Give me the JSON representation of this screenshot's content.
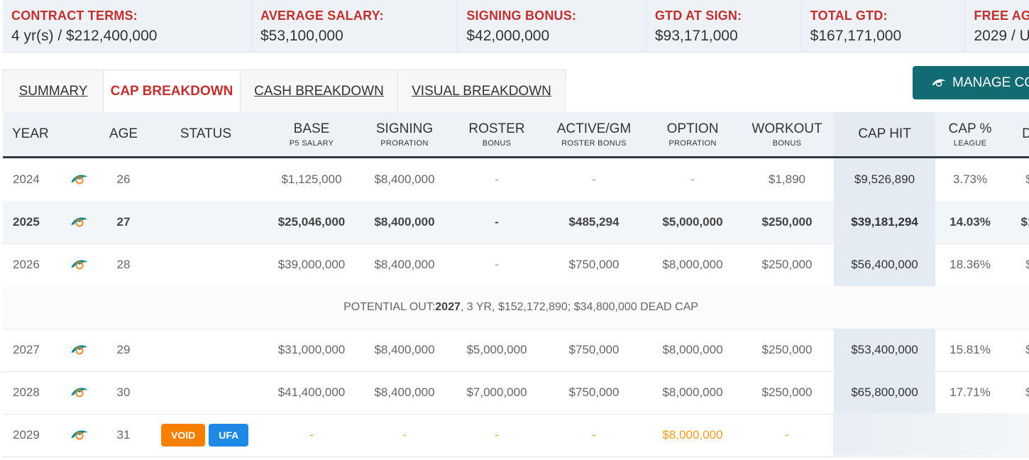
{
  "summary": [
    {
      "label": "CONTRACT TERMS:",
      "value": "4 yr(s) / $212,400,000"
    },
    {
      "label": "AVERAGE SALARY:",
      "value": "$53,100,000"
    },
    {
      "label": "SIGNING BONUS:",
      "value": "$42,000,000"
    },
    {
      "label": "GTD AT SIGN:",
      "value": "$93,171,000"
    },
    {
      "label": "TOTAL GTD:",
      "value": "$167,171,000"
    },
    {
      "label": "FREE AG",
      "value": "2029 / U"
    }
  ],
  "tabs": [
    "SUMMARY",
    "CAP BREAKDOWN",
    "CASH BREAKDOWN",
    "VISUAL BREAKDOWN"
  ],
  "manage_button": "MANAGE CO",
  "headers": {
    "year": "YEAR",
    "age": "AGE",
    "status": "STATUS",
    "base": "BASE",
    "base_sub": "P5 SALARY",
    "signing": "SIGNING",
    "signing_sub": "PRORATION",
    "roster": "ROSTER",
    "roster_sub": "BONUS",
    "active": "ACTIVE/GM",
    "active_sub": "ROSTER BONUS",
    "option": "OPTION",
    "option_sub": "PRORATION",
    "workout": "WORKOUT",
    "workout_sub": "BONUS",
    "caphit": "CAP HIT",
    "cappct": "CAP %",
    "cappct_sub": "LEAGUE",
    "dead": "D"
  },
  "rows": [
    {
      "year": "2024",
      "age": "26",
      "base": "$1,125,000",
      "signing": "$8,400,000",
      "roster": "-",
      "active": "-",
      "option": "-",
      "workout": "$1,890",
      "caphit": "$9,526,890",
      "cappct": "3.73%",
      "dead": "$"
    },
    {
      "year": "2025",
      "age": "27",
      "base": "$25,046,000",
      "signing": "$8,400,000",
      "roster": "-",
      "active": "$485,294",
      "option": "$5,000,000",
      "workout": "$250,000",
      "caphit": "$39,181,294",
      "cappct": "14.03%",
      "dead": "$1"
    },
    {
      "year": "2026",
      "age": "28",
      "base": "$39,000,000",
      "signing": "$8,400,000",
      "roster": "-",
      "active": "$750,000",
      "option": "$8,000,000",
      "workout": "$250,000",
      "caphit": "$56,400,000",
      "cappct": "18.36%",
      "dead": "$"
    },
    {
      "year": "2027",
      "age": "29",
      "base": "$31,000,000",
      "signing": "$8,400,000",
      "roster": "$5,000,000",
      "active": "$750,000",
      "option": "$8,000,000",
      "workout": "$250,000",
      "caphit": "$53,400,000",
      "cappct": "15.81%",
      "dead": "$"
    },
    {
      "year": "2028",
      "age": "30",
      "base": "$41,400,000",
      "signing": "$8,400,000",
      "roster": "$7,000,000",
      "active": "$750,000",
      "option": "$8,000,000",
      "workout": "$250,000",
      "caphit": "$65,800,000",
      "cappct": "17.71%",
      "dead": "$"
    },
    {
      "year": "2029",
      "age": "31",
      "status1": "VOID",
      "status2": "UFA",
      "base": "-",
      "signing": "-",
      "roster": "-",
      "active": "-",
      "option": "$8,000,000",
      "workout": "-",
      "dead": "$"
    }
  ],
  "potential": {
    "prefix": "POTENTIAL OUT: ",
    "year": "2027",
    "rest": ", 3 YR, $152,172,890; $34,800,000 DEAD CAP"
  },
  "colors": {
    "accent_red": "#c0302e",
    "teal": "#126b73",
    "void": "#f77f00",
    "ufa": "#1e88e5"
  }
}
